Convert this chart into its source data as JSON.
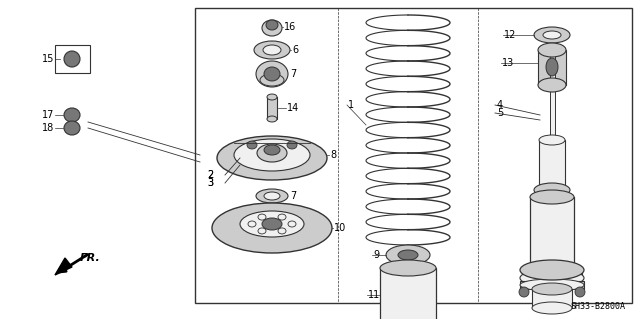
{
  "bg_color": "#ffffff",
  "border_color": "#000000",
  "line_color": "#555555",
  "text_color": "#000000",
  "part_dark": "#333333",
  "part_mid": "#777777",
  "part_light": "#cccccc",
  "part_white": "#f0f0f0",
  "fig_width": 6.4,
  "fig_height": 3.19,
  "dpi": 100,
  "footnote": "SH33-B2800A",
  "fr_label": "FR."
}
